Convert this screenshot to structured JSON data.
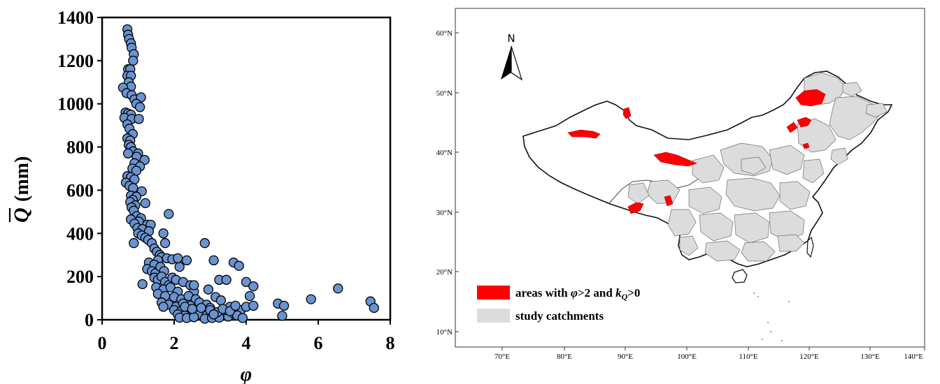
{
  "chart_data": [
    {
      "type": "scatter",
      "title": "",
      "xlabel": "φ",
      "ylabel_symbol": "Q",
      "ylabel_unit": "(mm)",
      "xlim": [
        0,
        8
      ],
      "ylim": [
        0,
        1400
      ],
      "xticks": [
        "0",
        "2",
        "4",
        "6",
        "8"
      ],
      "yticks": [
        "0",
        "200",
        "400",
        "600",
        "800",
        "1000",
        "1200",
        "1400"
      ],
      "grid": false,
      "marker_color": "#6a93cf",
      "marker_edge": "#000000",
      "points": [
        [
          0.7,
          1345
        ],
        [
          0.72,
          1320
        ],
        [
          0.75,
          1300
        ],
        [
          0.8,
          1280
        ],
        [
          0.82,
          1260
        ],
        [
          0.88,
          1230
        ],
        [
          0.86,
          1200
        ],
        [
          0.72,
          1160
        ],
        [
          0.78,
          1160
        ],
        [
          0.7,
          1130
        ],
        [
          0.8,
          1130
        ],
        [
          0.74,
          1100
        ],
        [
          0.8,
          1080
        ],
        [
          0.58,
          1075
        ],
        [
          0.68,
          1050
        ],
        [
          0.82,
          1040
        ],
        [
          0.9,
          1020
        ],
        [
          1.08,
          1030
        ],
        [
          0.95,
          1000
        ],
        [
          1.05,
          985
        ],
        [
          0.65,
          960
        ],
        [
          0.72,
          955
        ],
        [
          0.8,
          950
        ],
        [
          0.62,
          935
        ],
        [
          0.82,
          930
        ],
        [
          1.02,
          930
        ],
        [
          0.7,
          905
        ],
        [
          0.76,
          885
        ],
        [
          0.85,
          860
        ],
        [
          0.7,
          840
        ],
        [
          0.78,
          830
        ],
        [
          0.74,
          810
        ],
        [
          0.8,
          800
        ],
        [
          0.86,
          780
        ],
        [
          0.72,
          770
        ],
        [
          1.0,
          770
        ],
        [
          0.96,
          755
        ],
        [
          1.18,
          740
        ],
        [
          0.9,
          725
        ],
        [
          1.05,
          710
        ],
        [
          0.84,
          700
        ],
        [
          0.95,
          690
        ],
        [
          0.7,
          665
        ],
        [
          0.8,
          660
        ],
        [
          0.9,
          650
        ],
        [
          0.66,
          635
        ],
        [
          0.76,
          620
        ],
        [
          0.86,
          610
        ],
        [
          1.1,
          595
        ],
        [
          0.8,
          575
        ],
        [
          0.95,
          570
        ],
        [
          0.85,
          555
        ],
        [
          0.78,
          545
        ],
        [
          1.2,
          540
        ],
        [
          0.92,
          530
        ],
        [
          0.82,
          520
        ],
        [
          0.88,
          505
        ],
        [
          0.96,
          480
        ],
        [
          0.8,
          465
        ],
        [
          1.08,
          470
        ],
        [
          1.02,
          455
        ],
        [
          0.9,
          445
        ],
        [
          1.25,
          440
        ],
        [
          0.98,
          425
        ],
        [
          1.12,
          420
        ],
        [
          1.35,
          440
        ],
        [
          1.3,
          410
        ],
        [
          1.0,
          400
        ],
        [
          1.1,
          390
        ],
        [
          0.88,
          355
        ],
        [
          1.2,
          380
        ],
        [
          1.28,
          370
        ],
        [
          1.38,
          355
        ],
        [
          1.45,
          330
        ],
        [
          1.52,
          315
        ],
        [
          1.6,
          300
        ],
        [
          1.7,
          400
        ],
        [
          1.85,
          490
        ],
        [
          1.75,
          355
        ],
        [
          1.65,
          290
        ],
        [
          1.55,
          275
        ],
        [
          1.3,
          265
        ],
        [
          1.45,
          255
        ],
        [
          1.25,
          235
        ],
        [
          1.38,
          225
        ],
        [
          1.48,
          215
        ],
        [
          1.62,
          245
        ],
        [
          1.72,
          225
        ],
        [
          1.8,
          285
        ],
        [
          1.95,
          280
        ],
        [
          2.15,
          245
        ],
        [
          1.45,
          195
        ],
        [
          1.55,
          185
        ],
        [
          1.65,
          200
        ],
        [
          1.75,
          175
        ],
        [
          1.85,
          160
        ],
        [
          1.95,
          195
        ],
        [
          2.05,
          185
        ],
        [
          1.12,
          165
        ],
        [
          1.5,
          150
        ],
        [
          1.7,
          140
        ],
        [
          1.9,
          150
        ],
        [
          2.1,
          130
        ],
        [
          2.25,
          175
        ],
        [
          2.45,
          160
        ],
        [
          2.55,
          130
        ],
        [
          1.55,
          120
        ],
        [
          1.75,
          110
        ],
        [
          2.0,
          105
        ],
        [
          2.2,
          95
        ],
        [
          2.4,
          110
        ],
        [
          2.6,
          95
        ],
        [
          1.65,
          80
        ],
        [
          1.85,
          70
        ],
        [
          2.05,
          60
        ],
        [
          2.25,
          75
        ],
        [
          2.45,
          65
        ],
        [
          2.7,
          80
        ],
        [
          2.9,
          70
        ],
        [
          1.7,
          60
        ],
        [
          2.0,
          45
        ],
        [
          2.2,
          40
        ],
        [
          2.4,
          35
        ],
        [
          2.6,
          45
        ],
        [
          2.8,
          40
        ],
        [
          3.0,
          55
        ],
        [
          2.1,
          25
        ],
        [
          2.3,
          20
        ],
        [
          2.5,
          15
        ],
        [
          2.7,
          25
        ],
        [
          2.9,
          20
        ],
        [
          3.1,
          15
        ],
        [
          3.3,
          25
        ],
        [
          2.15,
          10
        ],
        [
          2.35,
          8
        ],
        [
          2.55,
          12
        ],
        [
          2.85,
          5
        ],
        [
          3.05,
          8
        ],
        [
          3.25,
          10
        ],
        [
          3.5,
          15
        ],
        [
          2.3,
          60
        ],
        [
          2.5,
          50
        ],
        [
          2.75,
          55
        ],
        [
          3.0,
          45
        ],
        [
          3.2,
          35
        ],
        [
          3.45,
          45
        ],
        [
          3.65,
          30
        ],
        [
          2.95,
          140
        ],
        [
          3.15,
          105
        ],
        [
          3.3,
          90
        ],
        [
          3.55,
          60
        ],
        [
          3.85,
          45
        ],
        [
          4.0,
          60
        ],
        [
          4.1,
          110
        ],
        [
          2.85,
          355
        ],
        [
          3.1,
          275
        ],
        [
          3.65,
          265
        ],
        [
          3.8,
          250
        ],
        [
          3.25,
          185
        ],
        [
          3.45,
          185
        ],
        [
          4.0,
          175
        ],
        [
          4.2,
          155
        ],
        [
          3.75,
          20
        ],
        [
          3.9,
          8
        ],
        [
          2.1,
          285
        ],
        [
          2.35,
          275
        ],
        [
          2.55,
          160
        ],
        [
          3.1,
          25
        ],
        [
          3.35,
          50
        ],
        [
          3.55,
          40
        ],
        [
          3.7,
          65
        ],
        [
          4.2,
          65
        ],
        [
          4.88,
          75
        ],
        [
          5.05,
          65
        ],
        [
          5.0,
          18
        ],
        [
          5.8,
          95
        ],
        [
          6.55,
          145
        ],
        [
          7.45,
          85
        ],
        [
          7.55,
          55
        ]
      ]
    },
    {
      "type": "map",
      "lat_labels": [
        "60°N",
        "50°N",
        "40°N",
        "30°N",
        "20°N",
        "10°N"
      ],
      "lon_labels": [
        "70°E",
        "80°E",
        "90°E",
        "100°E",
        "110°E",
        "120°E",
        "130°E",
        "140°E"
      ],
      "north_label": "N",
      "highlight_color": "#ff0000",
      "catchment_color": "#dcdcdc",
      "legend": [
        {
          "prefix": "areas with ",
          "phi": "φ",
          "mid": ">2 and ",
          "k": "k",
          "ksub": "Q",
          "suffix": ">0"
        },
        {
          "label": "study catchments"
        }
      ]
    }
  ]
}
